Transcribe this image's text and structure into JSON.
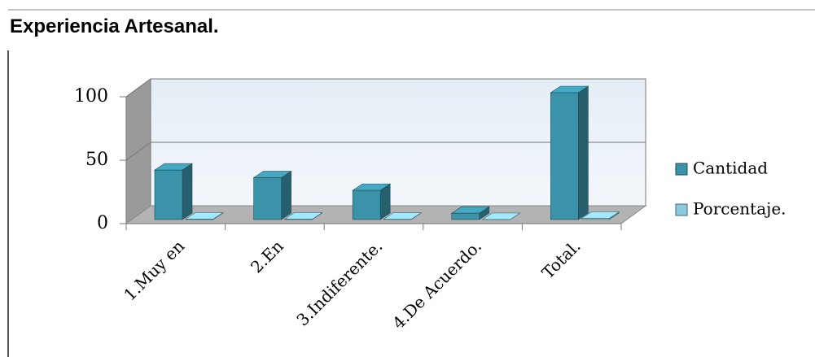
{
  "chart_data": {
    "type": "bar3d",
    "title": "Experiencia  Artesanal.",
    "categories": [
      "1.Muy en",
      "2.En",
      "3.Indiferente.",
      "4.De Acuerdo.",
      "Total."
    ],
    "series": [
      {
        "name": "Cantidad",
        "color": "#3b93aa",
        "values": [
          39,
          33,
          23,
          5,
          100
        ]
      },
      {
        "name": "Porcentaje.",
        "color": "#8ccbdd",
        "values": [
          0.39,
          0.33,
          0.23,
          0.05,
          1
        ]
      }
    ],
    "ylim": [
      0,
      100
    ],
    "yticks": [
      0,
      50,
      100
    ],
    "grid": true,
    "legend": "right"
  }
}
